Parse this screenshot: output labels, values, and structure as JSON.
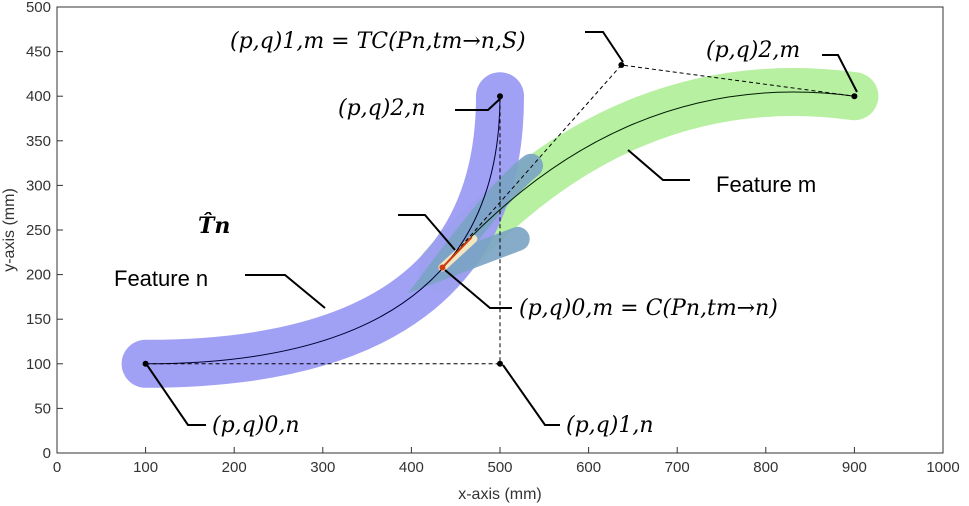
{
  "axes": {
    "xlabel": "x-axis (mm)",
    "ylabel": "y-axis (mm)",
    "xlim": [
      0,
      1000
    ],
    "ylim": [
      0,
      500
    ],
    "xticks": [
      "0",
      "100",
      "200",
      "300",
      "400",
      "500",
      "600",
      "700",
      "800",
      "900",
      "1000"
    ],
    "yticks": [
      "0",
      "50",
      "100",
      "150",
      "200",
      "250",
      "300",
      "350",
      "400",
      "450",
      "500"
    ]
  },
  "colors": {
    "feature_n": "#9b9bf3",
    "feature_m": "#b6f0a0",
    "overlap": "#7aa3c4",
    "highlight": "#f2e6c0",
    "red_segment": "#d03a10"
  },
  "feature_n": {
    "control_points": [
      {
        "label": "(p,q)0,n",
        "x": 100,
        "y": 100
      },
      {
        "label": "(p,q)1,n",
        "x": 500,
        "y": 100
      },
      {
        "label": "(p,q)2,n",
        "x": 500,
        "y": 400
      }
    ]
  },
  "feature_m": {
    "control_points": [
      {
        "label": "(p,q)0,m",
        "x": 435,
        "y": 208
      },
      {
        "label": "(p,q)1,m",
        "x": 637,
        "y": 435
      },
      {
        "label": "(p,q)2,m",
        "x": 900,
        "y": 400
      }
    ]
  },
  "annotations": {
    "p0n": "(p,q)0,n",
    "p1n": "(p,q)1,n",
    "p2n": "(p,q)2,n",
    "p0m": "(p,q)0,m = C(Pn,tm→n)",
    "p1m": "(p,q)1,m = TC(Pn,tm→n,S)",
    "p2m": "(p,q)2,m",
    "feature_n_label": "Feature n",
    "feature_m_label": "Feature m",
    "tn_label": "T̂n"
  }
}
